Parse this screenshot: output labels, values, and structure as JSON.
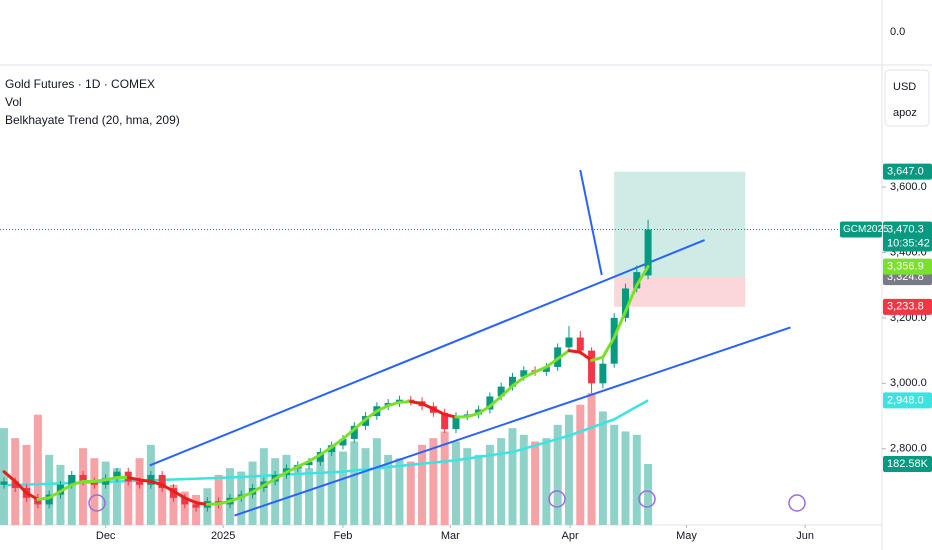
{
  "legend": {
    "symbol": "Gold Futures · 1D · COMEX",
    "volume": "Vol",
    "indicator": "Belkhayate Trend (20, hma, 209)"
  },
  "top_pane": {
    "label": "0.0"
  },
  "axis_unit": {
    "currency": "USD",
    "mode": "apoz"
  },
  "chart_data": {
    "type": "candlestick",
    "xlim": [
      -0.35,
      77.7
    ],
    "xticks": [
      {
        "value": 9,
        "label": "Dec"
      },
      {
        "value": 19.4,
        "label": "2025"
      },
      {
        "value": 30,
        "label": "Feb"
      },
      {
        "value": 39.5,
        "label": "Mar"
      },
      {
        "value": 50.1,
        "label": "Apr"
      },
      {
        "value": 60.4,
        "label": "May"
      },
      {
        "value": 70.9,
        "label": "Jun"
      }
    ],
    "ylim": [
      2567,
      3973
    ],
    "yticks": [
      {
        "value": 2800,
        "label": "2,800.0"
      },
      {
        "value": 3000,
        "label": "3,000.0"
      },
      {
        "value": 3200,
        "label": "3,200.0"
      },
      {
        "value": 3400,
        "label": "3,400.0"
      },
      {
        "value": 3600,
        "label": "3,600.0"
      }
    ],
    "grid": false,
    "up_color": "#089981",
    "down_color": "#f23645",
    "open": [
      2690,
      2700,
      2680,
      2650,
      2630,
      2660,
      2690,
      2720,
      2700,
      2690,
      2710,
      2730,
      2700,
      2690,
      2720,
      2680,
      2650,
      2630,
      2620,
      2640,
      2630,
      2650,
      2660,
      2680,
      2700,
      2720,
      2740,
      2750,
      2760,
      2790,
      2810,
      2830,
      2870,
      2900,
      2930,
      2940,
      2950,
      2945,
      2930,
      2910,
      2860,
      2900,
      2905,
      2920,
      2960,
      2990,
      3020,
      3040,
      3035,
      3050,
      3110,
      3140,
      3100,
      3000,
      3060,
      3200,
      3290,
      3330
    ],
    "high": [
      2712,
      2712,
      2692,
      2662,
      2672,
      2702,
      2732,
      2732,
      2712,
      2722,
      2742,
      2742,
      2712,
      2732,
      2732,
      2692,
      2662,
      2642,
      2652,
      2652,
      2662,
      2672,
      2692,
      2712,
      2732,
      2752,
      2762,
      2772,
      2802,
      2822,
      2842,
      2882,
      2912,
      2942,
      2952,
      2962,
      2962,
      2957,
      2942,
      2922,
      2912,
      2917,
      2932,
      2972,
      3002,
      3032,
      3052,
      3052,
      3062,
      3122,
      3175,
      3160,
      3110,
      3075,
      3215,
      3305,
      3360,
      3500
    ],
    "low": [
      2678,
      2668,
      2638,
      2618,
      2618,
      2648,
      2678,
      2688,
      2678,
      2678,
      2698,
      2688,
      2678,
      2678,
      2668,
      2638,
      2618,
      2608,
      2608,
      2618,
      2618,
      2638,
      2648,
      2668,
      2688,
      2708,
      2728,
      2738,
      2748,
      2778,
      2798,
      2818,
      2858,
      2888,
      2918,
      2928,
      2933,
      2918,
      2898,
      2848,
      2848,
      2888,
      2893,
      2908,
      2948,
      2978,
      3008,
      3023,
      3023,
      3038,
      3098,
      3088,
      2970,
      2985,
      3048,
      3188,
      3278,
      3318
    ],
    "close": [
      2700,
      2680,
      2650,
      2630,
      2660,
      2690,
      2720,
      2700,
      2690,
      2710,
      2730,
      2700,
      2690,
      2720,
      2680,
      2650,
      2630,
      2620,
      2640,
      2630,
      2650,
      2660,
      2680,
      2700,
      2720,
      2740,
      2750,
      2760,
      2790,
      2810,
      2830,
      2870,
      2900,
      2930,
      2940,
      2950,
      2945,
      2930,
      2910,
      2860,
      2900,
      2905,
      2920,
      2960,
      2990,
      3020,
      3040,
      3035,
      3050,
      3110,
      3140,
      3100,
      3000,
      3060,
      3200,
      3290,
      3340,
      3470.3
    ],
    "volume": {
      "values": [
        290,
        260,
        240,
        330,
        210,
        180,
        150,
        230,
        200,
        190,
        170,
        140,
        200,
        240,
        130,
        120,
        100,
        90,
        110,
        150,
        170,
        160,
        190,
        230,
        200,
        210,
        180,
        170,
        200,
        240,
        220,
        250,
        230,
        260,
        210,
        200,
        190,
        240,
        260,
        280,
        250,
        230,
        210,
        240,
        260,
        290,
        270,
        250,
        260,
        300,
        330,
        360,
        395,
        340,
        300,
        280,
        270,
        182.58
      ],
      "y2lim": [
        0,
        1377
      ],
      "up_color": "#8fd3c8",
      "down_color": "#f5a3a6",
      "last": {
        "value": 182.58,
        "label": "182.58K",
        "color": "#089981"
      }
    },
    "hma": {
      "values": [
        2730,
        2700,
        2665,
        2645,
        2650,
        2670,
        2690,
        2700,
        2700,
        2705,
        2712,
        2712,
        2705,
        2700,
        2690,
        2670,
        2650,
        2635,
        2630,
        2632,
        2640,
        2652,
        2668,
        2688,
        2708,
        2728,
        2745,
        2762,
        2782,
        2805,
        2830,
        2860,
        2890,
        2915,
        2932,
        2942,
        2944,
        2938,
        2922,
        2905,
        2897,
        2898,
        2908,
        2930,
        2960,
        2992,
        3018,
        3035,
        3050,
        3075,
        3100,
        3095,
        3070,
        3080,
        3140,
        3220,
        3300,
        3356.9
      ],
      "up_color": "#7be02a",
      "down_color": "#e8201c",
      "last": {
        "value": 3356.9,
        "label": "3,356.9",
        "color": "#7be02a"
      }
    },
    "ma": {
      "x": [
        0,
        10,
        20,
        30,
        40,
        45,
        50,
        54,
        57
      ],
      "values": [
        2688,
        2700,
        2712,
        2730,
        2765,
        2790,
        2840,
        2890,
        2948.0
      ],
      "color": "#3de3e0",
      "last": {
        "value": 2948.0,
        "label": "2,948.0",
        "color": "#3de3e0"
      }
    },
    "trendlines": {
      "color": "#2962ff",
      "lines": [
        {
          "x": [
            12.9,
            62.0
          ],
          "values": [
            2749,
            3438
          ]
        },
        {
          "x": [
            20.4,
            69.6
          ],
          "values": [
            2596,
            3171
          ]
        },
        {
          "x": [
            51.0,
            52.9
          ],
          "values": [
            3652,
            3331
          ]
        }
      ]
    },
    "position": {
      "x": [
        54.0,
        65.6
      ],
      "target": 3647.0,
      "entry": 3324.8,
      "stop": 3233.8,
      "labels": [
        {
          "value": 3647.0,
          "label": "3,647.0",
          "color": "#089981"
        },
        {
          "value": 3324.8,
          "label": "3,324.8",
          "color": "#787b86"
        },
        {
          "value": 3233.8,
          "label": "3,233.8",
          "color": "#f23645"
        }
      ]
    },
    "last_price": {
      "value": 3470.3,
      "label": "3,470.3",
      "countdown": "10:35:42",
      "symbol": "GCM2025",
      "color": "#089981"
    }
  }
}
